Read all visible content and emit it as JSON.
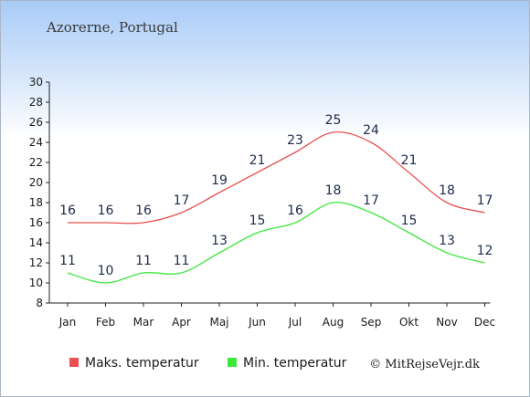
{
  "title": "Azorerne, Portugal",
  "credit": "© MitRejseVejr.dk",
  "chart_data": {
    "type": "line",
    "categories": [
      "Jan",
      "Feb",
      "Mar",
      "Apr",
      "Maj",
      "Jun",
      "Jul",
      "Aug",
      "Sep",
      "Okt",
      "Nov",
      "Dec"
    ],
    "ylim": [
      8,
      30
    ],
    "yticks": [
      8,
      10,
      12,
      14,
      16,
      18,
      20,
      22,
      24,
      26,
      28,
      30
    ],
    "grid": false,
    "legend": "bottom",
    "series": [
      {
        "name": "Maks. temperatur",
        "color": "#e85050",
        "values": [
          16,
          16,
          16,
          17,
          19,
          21,
          23,
          25,
          24,
          21,
          18,
          17
        ]
      },
      {
        "name": "Min. temperatur",
        "color": "#3ce83c",
        "values": [
          11,
          10,
          11,
          11,
          13,
          15,
          16,
          18,
          17,
          15,
          13,
          12
        ]
      }
    ]
  }
}
